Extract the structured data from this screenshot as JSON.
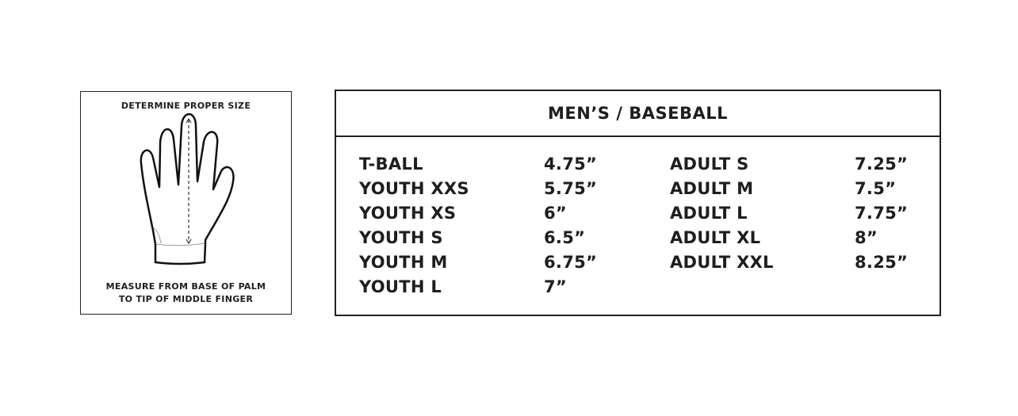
{
  "guide": {
    "title": "DETERMINE PROPER SIZE",
    "instruction_line1": "MEASURE FROM BASE OF PALM",
    "instruction_line2": "TO TIP OF MIDDLE FINGER",
    "icon": "glove-measure-icon"
  },
  "table": {
    "title": "MEN’S / BASEBALL",
    "left_column": [
      {
        "size": "T-BALL",
        "measure": "4.75”"
      },
      {
        "size": "YOUTH XXS",
        "measure": "5.75”"
      },
      {
        "size": "YOUTH XS",
        "measure": "6”"
      },
      {
        "size": "YOUTH S",
        "measure": "6.5”"
      },
      {
        "size": "YOUTH M",
        "measure": "6.75”"
      },
      {
        "size": "YOUTH L",
        "measure": "7”"
      }
    ],
    "right_column": [
      {
        "size": "ADULT S",
        "measure": "7.25”"
      },
      {
        "size": "ADULT M",
        "measure": "7.5”"
      },
      {
        "size": "ADULT L",
        "measure": "7.75”"
      },
      {
        "size": "ADULT XL",
        "measure": "8”"
      },
      {
        "size": "ADULT XXL",
        "measure": "8.25”"
      }
    ]
  }
}
